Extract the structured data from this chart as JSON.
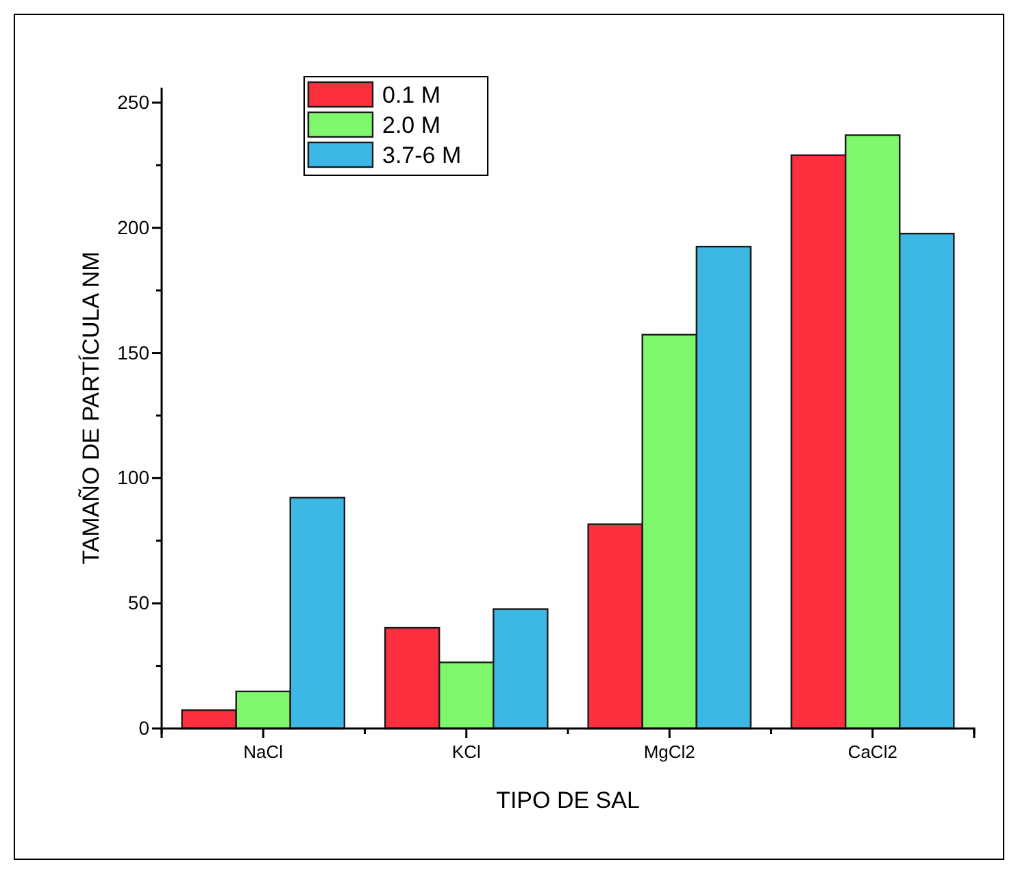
{
  "chart_data": {
    "type": "bar",
    "xlabel": "TIPO DE SAL",
    "ylabel": "TAMAÑO DE PARTÍCULA NM",
    "categories": [
      "NaCl",
      "KCl",
      "MgCl2",
      "CaCl2"
    ],
    "series": [
      {
        "name": "0.1 M",
        "color": "#fc2f3f",
        "values": [
          7.3,
          40.2,
          81.6,
          229
        ]
      },
      {
        "name": "2.0 M",
        "color": "#7ff76c",
        "values": [
          14.8,
          26.4,
          157.3,
          237
        ]
      },
      {
        "name": "3.7-6 M",
        "color": "#3db7e4",
        "values": [
          92.2,
          47.7,
          192.5,
          197.7
        ]
      }
    ],
    "ylim": [
      0,
      256
    ],
    "yticks": [
      0,
      {
        "value": 25,
        "label": null
      },
      50,
      {
        "value": 75,
        "label": null
      },
      100,
      {
        "value": 125,
        "label": null
      },
      150,
      {
        "value": 175,
        "label": null
      },
      200,
      {
        "value": 225,
        "label": null
      },
      250
    ],
    "grid": false,
    "legend": "top left"
  }
}
